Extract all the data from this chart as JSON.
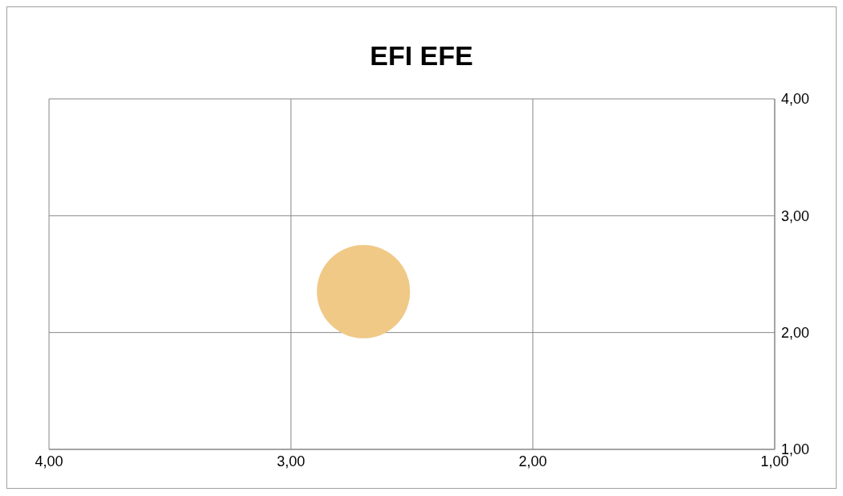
{
  "chart_data": {
    "type": "bubble",
    "title": "EFI EFE",
    "series": [
      {
        "color": "#f0c987",
        "x": [
          2.7
        ],
        "values": [
          2.35
        ],
        "sizes": [
          1
        ]
      }
    ],
    "xlim": [
      4,
      1
    ],
    "xticks": [
      {
        "value": 4,
        "label": "4,00"
      },
      {
        "value": 3,
        "label": "3,00"
      },
      {
        "value": 2,
        "label": "2,00"
      },
      {
        "value": 1,
        "label": "1,00"
      }
    ],
    "ylim": [
      1,
      4
    ],
    "yticks": [
      {
        "value": 1,
        "label": "1,00"
      },
      {
        "value": 2,
        "label": "2,00"
      },
      {
        "value": 3,
        "label": "3,00"
      },
      {
        "value": 4,
        "label": "4,00"
      }
    ],
    "grid": true
  }
}
